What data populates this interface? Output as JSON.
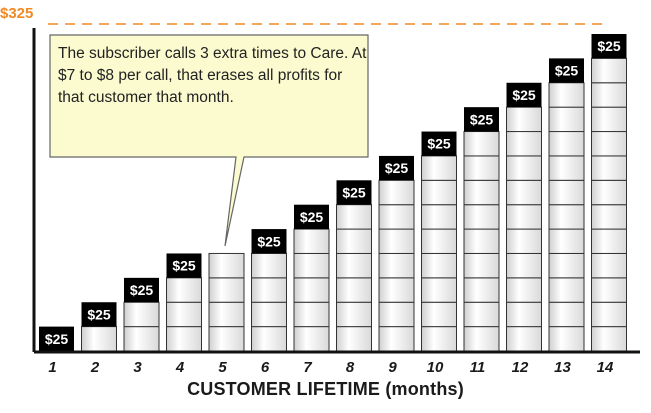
{
  "chart_data": {
    "type": "bar",
    "title": "",
    "xlabel": "CUSTOMER LIFETIME (months)",
    "ylabel": "",
    "categories": [
      "1",
      "2",
      "3",
      "4",
      "5",
      "6",
      "7",
      "8",
      "9",
      "10",
      "11",
      "12",
      "13",
      "14"
    ],
    "values": [
      25,
      50,
      75,
      100,
      100,
      125,
      150,
      175,
      200,
      225,
      250,
      275,
      300,
      325
    ],
    "bar_labels": [
      "$25",
      "$25",
      "$25",
      "$25",
      "",
      "$25",
      "$25",
      "$25",
      "$25",
      "$25",
      "$25",
      "$25",
      "$25",
      "$25"
    ],
    "reference_line": {
      "value": 325,
      "label": "$325",
      "style": "dashed",
      "color": "#f08a24"
    },
    "ylim": [
      0,
      325
    ],
    "grid": false,
    "annotation": {
      "text": "The subscriber calls 3 extra times to Care. At $7 to $8 per call, that erases all profits for that customer that month.",
      "points_to": "5"
    },
    "colors": {
      "segment_fill": "#f0f0f0",
      "segment_stroke": "#333333",
      "label_box": "#000000",
      "label_text": "#ffffff",
      "reference": "#f08a24",
      "callout_fill": "#fbfbcf",
      "callout_stroke": "#666666"
    }
  }
}
